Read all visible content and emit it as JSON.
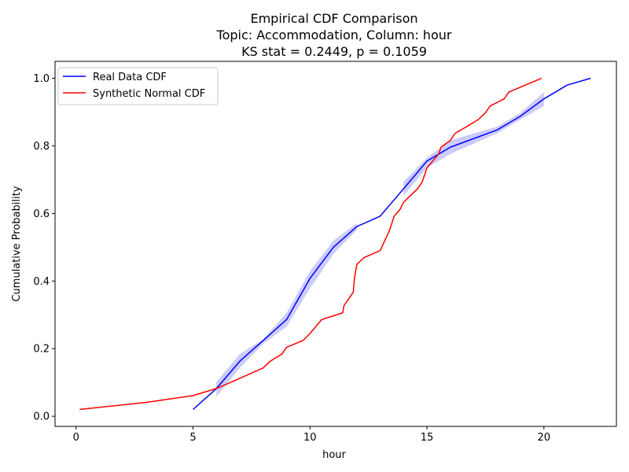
{
  "chart_data": {
    "type": "line",
    "title_lines": [
      "Empirical CDF Comparison",
      "Topic: Accommodation, Column: hour",
      "KS stat = 0.2449, p = 0.1059"
    ],
    "xlabel": "hour",
    "ylabel": "Cumulative Probability",
    "xlim": [
      -0.9,
      23.1
    ],
    "ylim": [
      -0.03,
      1.05
    ],
    "x_ticks": [
      0,
      5,
      10,
      15,
      20
    ],
    "x_tick_labels": [
      "0",
      "5",
      "10",
      "15",
      "20"
    ],
    "y_ticks": [
      0.0,
      0.2,
      0.4,
      0.6,
      0.8,
      1.0
    ],
    "y_tick_labels": [
      "0.0",
      "0.2",
      "0.4",
      "0.6",
      "0.8",
      "1.0"
    ],
    "grid": false,
    "legend_position": "top-left",
    "series": [
      {
        "name": "Real Data CDF",
        "color": "#0000ff",
        "x": [
          5,
          6,
          7,
          8,
          9,
          10,
          11,
          12,
          13,
          14,
          15,
          16,
          18,
          19,
          20,
          21,
          22
        ],
        "y": [
          0.02,
          0.082,
          0.163,
          0.224,
          0.286,
          0.408,
          0.5,
          0.561,
          0.592,
          0.673,
          0.755,
          0.796,
          0.847,
          0.888,
          0.939,
          0.98,
          1.0
        ]
      },
      {
        "name": "Synthetic Normal CDF",
        "color": "#ff0000",
        "x": [
          0.15,
          3.0,
          5.0,
          6.0,
          7.0,
          8.0,
          8.3,
          8.8,
          9.0,
          9.7,
          10.0,
          10.5,
          11.4,
          11.45,
          11.85,
          11.9,
          12.0,
          12.3,
          13.0,
          13.2,
          13.4,
          13.5,
          13.6,
          13.85,
          14.0,
          14.6,
          14.8,
          15.0,
          15.5,
          15.6,
          16.0,
          16.2,
          16.7,
          17.2,
          17.5,
          17.7,
          18.3,
          18.5,
          19.9
        ],
        "y": [
          0.02,
          0.041,
          0.061,
          0.082,
          0.112,
          0.143,
          0.163,
          0.184,
          0.204,
          0.224,
          0.245,
          0.286,
          0.306,
          0.327,
          0.367,
          0.408,
          0.449,
          0.469,
          0.49,
          0.52,
          0.55,
          0.571,
          0.592,
          0.612,
          0.633,
          0.673,
          0.694,
          0.735,
          0.776,
          0.796,
          0.816,
          0.837,
          0.857,
          0.878,
          0.898,
          0.918,
          0.939,
          0.959,
          1.0
        ]
      }
    ],
    "confidence_band": {
      "series": "Real Data CDF",
      "color": "#0000ff",
      "segments": [
        {
          "x": [
            6,
            7,
            8,
            9,
            10,
            11,
            12
          ],
          "lower": [
            0.058,
            0.143,
            0.214,
            0.265,
            0.378,
            0.48,
            0.551
          ],
          "upper": [
            0.102,
            0.184,
            0.228,
            0.306,
            0.429,
            0.52,
            0.571
          ]
        },
        {
          "x": [
            14,
            15,
            16,
            18,
            19,
            20
          ],
          "lower": [
            0.653,
            0.735,
            0.776,
            0.837,
            0.878,
            0.918
          ],
          "upper": [
            0.694,
            0.765,
            0.816,
            0.857,
            0.898,
            0.959
          ]
        }
      ]
    }
  }
}
